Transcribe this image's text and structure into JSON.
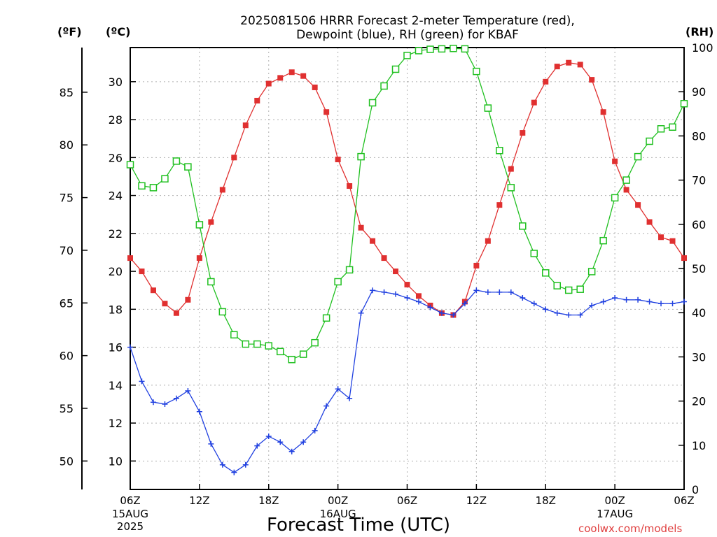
{
  "chart_data": {
    "type": "line",
    "title_line1": "2025081506 HRRR Forecast 2-meter Temperature (red),",
    "title_line2": "Dewpoint (blue), RH (green) for KBAF",
    "xlabel": "Forecast Time (UTC)",
    "credit": "coolwx.com/models",
    "axis_labels": {
      "fahrenheit": "(ºF)",
      "celsius": "(ºC)",
      "rh": "(RH)"
    },
    "x_ticks": [
      {
        "hour": 0,
        "label": "06Z",
        "date": "15AUG",
        "year": "2025"
      },
      {
        "hour": 6,
        "label": "12Z"
      },
      {
        "hour": 12,
        "label": "18Z"
      },
      {
        "hour": 18,
        "label": "00Z",
        "date": "16AUG"
      },
      {
        "hour": 24,
        "label": "06Z"
      },
      {
        "hour": 30,
        "label": "12Z"
      },
      {
        "hour": 36,
        "label": "18Z"
      },
      {
        "hour": 42,
        "label": "00Z",
        "date": "17AUG"
      },
      {
        "hour": 48,
        "label": "06Z"
      }
    ],
    "xlim": [
      0,
      48
    ],
    "celsius_ylim": [
      8.5,
      31.8
    ],
    "celsius_ticks": [
      10,
      12,
      14,
      16,
      18,
      20,
      22,
      24,
      26,
      28,
      30
    ],
    "fahrenheit_ticks": [
      50,
      55,
      60,
      65,
      70,
      75,
      80,
      85
    ],
    "rh_ylim": [
      0,
      100
    ],
    "rh_ticks": [
      0,
      10,
      20,
      30,
      40,
      50,
      60,
      70,
      80,
      90,
      100
    ],
    "grid": true,
    "colors": {
      "temperature": "#e03030",
      "dewpoint": "#2040e0",
      "rh": "#20c020"
    },
    "series": [
      {
        "key": "temperature",
        "axis": "celsius",
        "marker": "filled-square",
        "values": [
          20.7,
          20.0,
          19.0,
          18.3,
          17.8,
          18.5,
          20.7,
          22.6,
          24.3,
          26.0,
          27.7,
          29.0,
          29.9,
          30.2,
          30.5,
          30.3,
          29.7,
          28.4,
          25.9,
          24.5,
          22.3,
          21.6,
          20.7,
          20.0,
          19.3,
          18.7,
          18.2,
          17.8,
          17.7,
          18.4,
          20.3,
          21.6,
          23.5,
          25.4,
          27.3,
          28.9,
          30.0,
          30.8,
          31.0,
          30.9,
          30.1,
          28.4,
          25.8,
          24.3,
          23.5,
          22.6,
          21.8,
          21.6,
          20.7
        ]
      },
      {
        "key": "dewpoint",
        "axis": "celsius",
        "marker": "plus",
        "values": [
          16.0,
          14.2,
          13.1,
          13.0,
          13.3,
          13.7,
          12.6,
          10.9,
          9.8,
          9.4,
          9.8,
          10.8,
          11.3,
          11.0,
          10.5,
          11.0,
          11.6,
          12.9,
          13.8,
          13.3,
          17.8,
          19.0,
          18.9,
          18.8,
          18.6,
          18.4,
          18.1,
          17.8,
          17.7,
          18.3,
          19.0,
          18.9,
          18.9,
          18.9,
          18.6,
          18.3,
          18.0,
          17.8,
          17.7,
          17.7,
          18.2,
          18.4,
          18.6,
          18.5,
          18.5,
          18.4,
          18.3,
          18.3,
          18.4
        ]
      },
      {
        "key": "rh",
        "axis": "rh",
        "marker": "open-square",
        "values": [
          73.5,
          68.7,
          68.3,
          70.3,
          74.3,
          73.0,
          59.9,
          47.0,
          40.2,
          35.0,
          32.9,
          32.9,
          32.5,
          31.2,
          29.4,
          30.6,
          33.2,
          38.8,
          47.0,
          49.7,
          75.3,
          87.5,
          91.3,
          95.1,
          98.2,
          99.3,
          99.6,
          99.7,
          99.8,
          99.7,
          94.6,
          86.3,
          76.7,
          68.3,
          59.6,
          53.4,
          49.0,
          46.1,
          45.1,
          45.3,
          49.3,
          56.3,
          66.0,
          70.0,
          75.3,
          78.8,
          81.6,
          82.0,
          87.3
        ]
      }
    ]
  }
}
